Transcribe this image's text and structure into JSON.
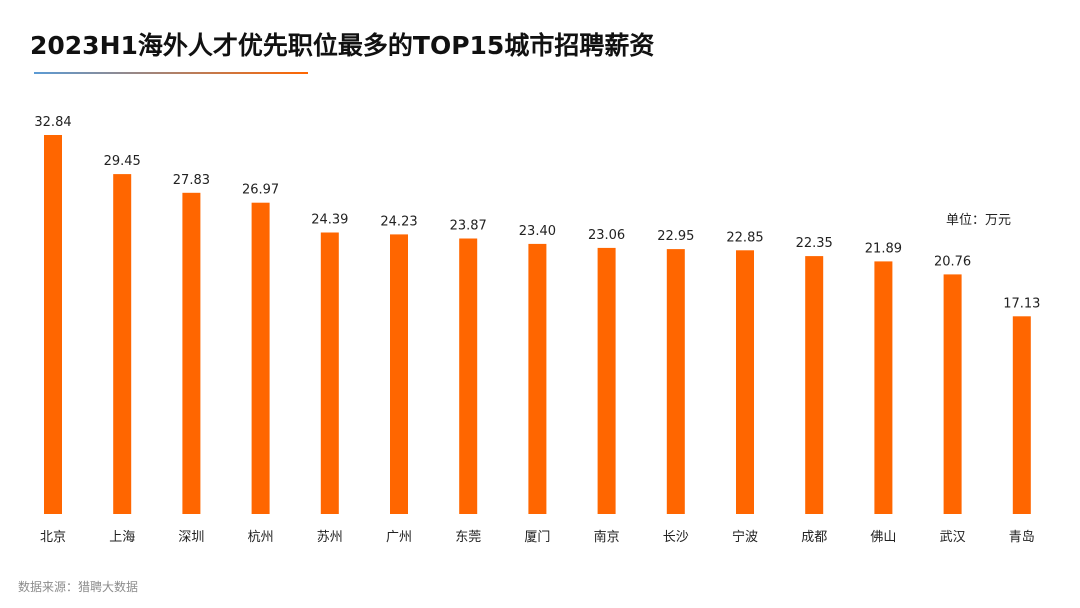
{
  "colors": {
    "bar": "#ff6600",
    "rule_start": "#5b9bd5",
    "rule_end": "#ff6600"
  },
  "source": "数据来源：猎聘大数据",
  "chart_data": {
    "type": "bar",
    "title": "2023H1海外人才优先职位最多的TOP15城市招聘薪资",
    "unit": "单位：万元",
    "categories": [
      "北京",
      "上海",
      "深圳",
      "杭州",
      "苏州",
      "广州",
      "东莞",
      "厦门",
      "南京",
      "长沙",
      "宁波",
      "成都",
      "佛山",
      "武汉",
      "青岛"
    ],
    "values": [
      32.84,
      29.45,
      27.83,
      26.97,
      24.39,
      24.23,
      23.87,
      23.4,
      23.06,
      22.95,
      22.85,
      22.35,
      21.89,
      20.76,
      17.13
    ],
    "value_labels": [
      "32.84",
      "29.45",
      "27.83",
      "26.97",
      "24.39",
      "24.23",
      "23.87",
      "23.40",
      "23.06",
      "22.95",
      "22.85",
      "22.35",
      "21.89",
      "20.76",
      "17.13"
    ],
    "data_labels": true,
    "grid": false,
    "legend": "none",
    "ylim": [
      0,
      32.84
    ]
  }
}
